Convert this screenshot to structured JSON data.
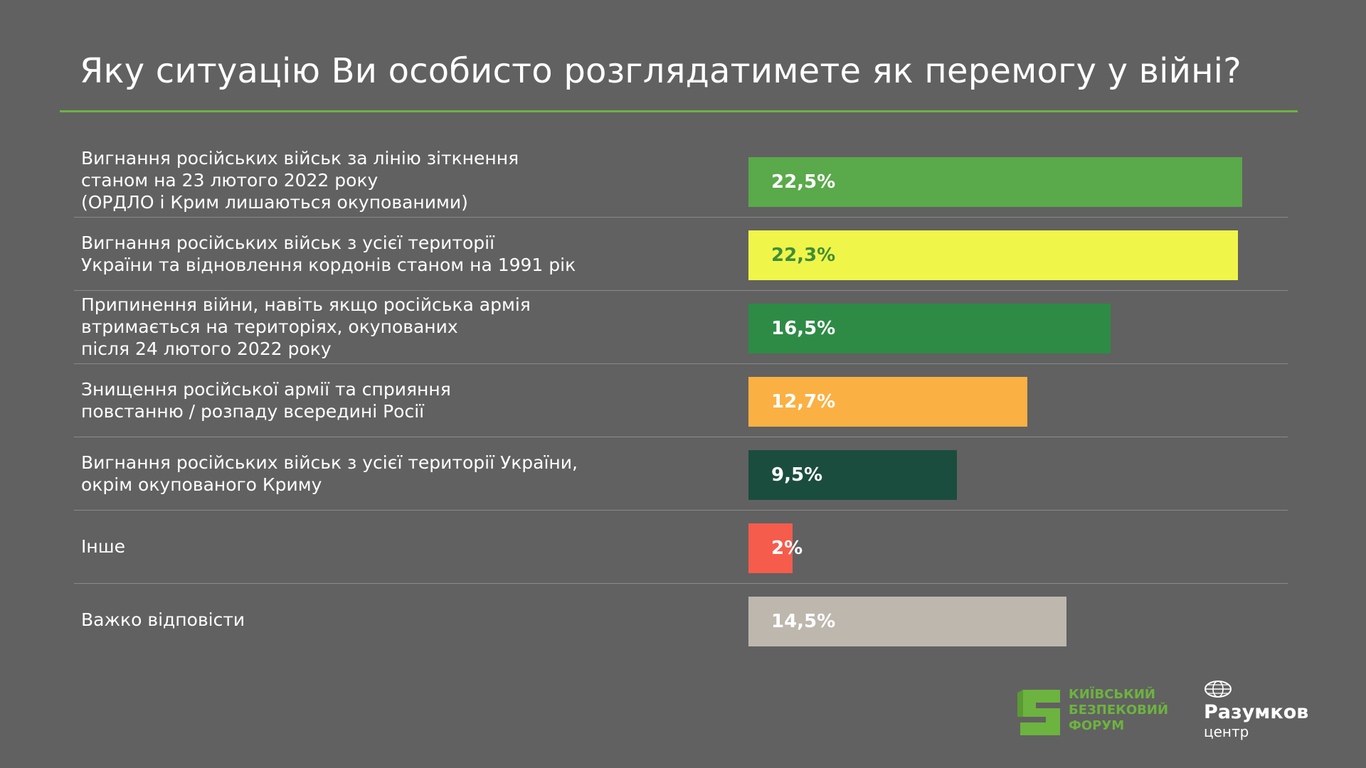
{
  "chart_data": {
    "type": "bar",
    "orientation": "horizontal",
    "title": "Яку ситуацію Ви особисто розглядатимете як перемогу у війні?",
    "categories": [
      [
        "Вигнання російських військ за лінію зіткнення",
        "станом на 23 лютого 2022 року",
        "(ОРДЛО і Крим лишаються окупованими)"
      ],
      [
        "Вигнання російських військ з усієї території",
        "України та відновлення кордонів станом на 1991 рік"
      ],
      [
        "Припинення війни, навіть якщо російська армія",
        "втримається на територіях, окупованих",
        "після 24 лютого 2022 року"
      ],
      [
        "Знищення російської армії та сприяння",
        "повстанню / розпаду всередині Росії"
      ],
      [
        "Вигнання російських військ з усієї території України,",
        "окрім окупованого Криму"
      ],
      [
        "Інше"
      ],
      [
        "Важко відповісти"
      ]
    ],
    "values": [
      22.5,
      22.3,
      16.5,
      12.7,
      9.5,
      2,
      14.5
    ],
    "value_labels": [
      "22,5%",
      "22,3%",
      "16,5%",
      "12,7%",
      "9,5%",
      "2%",
      "14,5%"
    ],
    "colors": [
      "#5aa94a",
      "#f0f54a",
      "#2e8b45",
      "#fbb043",
      "#1b4d3e",
      "#f65c4c",
      "#beb7ae"
    ],
    "label_colors": [
      "#ffffff",
      "#3f8e38",
      "#ffffff",
      "#ffffff",
      "#ffffff",
      "#ffffff",
      "#ffffff"
    ],
    "xlim": [
      0,
      22.5
    ],
    "unit": "%"
  },
  "logos": {
    "kbf": {
      "lines": [
        "КИЇВСЬКИЙ",
        "БЕЗПЕКОВИЙ",
        "ФОРУМ"
      ],
      "color": "#6db33f"
    },
    "razumkov": {
      "name": "Разумков",
      "sub": "центр"
    }
  }
}
